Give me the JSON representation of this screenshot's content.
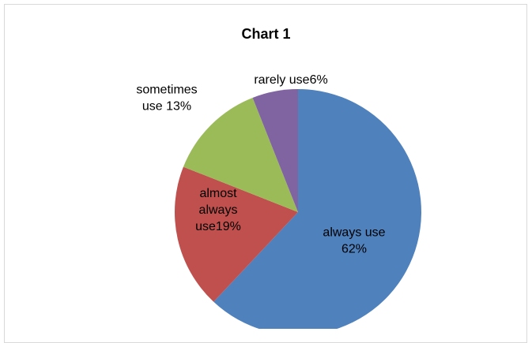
{
  "chart_data": {
    "type": "pie",
    "title": "Chart 1",
    "slices": [
      {
        "label_lines": [
          "always use",
          "62%"
        ],
        "value": 62,
        "color": "#4f81bd"
      },
      {
        "label_lines": [
          "almost",
          "always",
          "use19%"
        ],
        "value": 19,
        "color": "#c0504d"
      },
      {
        "label_lines": [
          "sometimes",
          "use 13%"
        ],
        "value": 13,
        "color": "#9bbb59"
      },
      {
        "label_lines": [
          "rarely use6%"
        ],
        "value": 6,
        "color": "#8064a2"
      }
    ]
  }
}
